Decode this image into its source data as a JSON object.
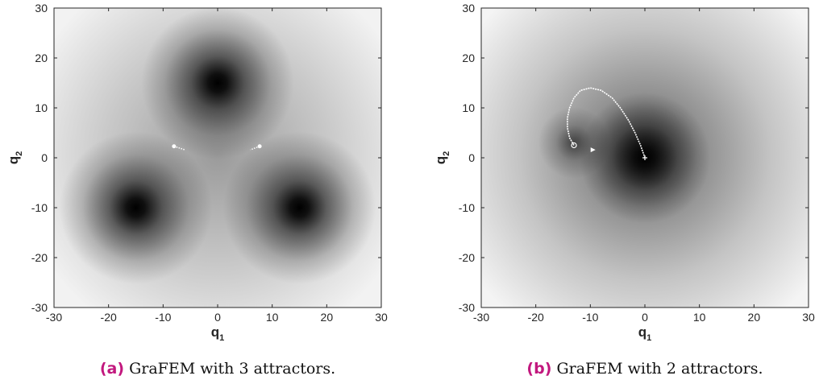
{
  "chart_data": [
    {
      "type": "heatmap",
      "panel_tag": "(a)",
      "caption": "GraFEM with 3 attractors.",
      "xlabel": "q",
      "xlabel_sub": "1",
      "ylabel": "q",
      "ylabel_sub": "2",
      "xlim": [
        -30,
        30
      ],
      "ylim": [
        -30,
        30
      ],
      "xticks": [
        -30,
        -20,
        -10,
        0,
        10,
        20,
        30
      ],
      "yticks": [
        -30,
        -20,
        -10,
        0,
        10,
        20,
        30
      ],
      "xtick_labels": [
        "-30",
        "-20",
        "-10",
        "0",
        "10",
        "20",
        "30"
      ],
      "ytick_labels": [
        "-30",
        "-20",
        "-10",
        "0",
        "10",
        "20",
        "30"
      ],
      "colormap": "grayscale (dark = attractor minimum)",
      "attractors": [
        [
          0,
          15
        ],
        [
          -15,
          -10
        ],
        [
          15,
          -10
        ]
      ],
      "trajectory_markers": [
        {
          "start": [
            -8,
            2.3
          ],
          "end": [
            -6,
            1.6
          ]
        },
        {
          "start": [
            7.7,
            2.3
          ],
          "end": [
            6,
            1.6
          ]
        }
      ]
    },
    {
      "type": "heatmap",
      "panel_tag": "(b)",
      "caption": "GraFEM with 2 attractors.",
      "xlabel": "q",
      "xlabel_sub": "1",
      "ylabel": "q",
      "ylabel_sub": "2",
      "xlim": [
        -30,
        30
      ],
      "ylim": [
        -30,
        30
      ],
      "xticks": [
        -30,
        -20,
        -10,
        0,
        10,
        20,
        30
      ],
      "yticks": [
        -30,
        -20,
        -10,
        0,
        10,
        20,
        30
      ],
      "xtick_labels": [
        "-30",
        "-20",
        "-10",
        "0",
        "10",
        "20",
        "30"
      ],
      "ytick_labels": [
        "-30",
        "-20",
        "-10",
        "0",
        "10",
        "20",
        "30"
      ],
      "colormap": "grayscale (dark = attractor minimum)",
      "attractors": [
        [
          -13,
          3
        ],
        [
          0,
          0
        ]
      ],
      "attractor_strength": [
        0.55,
        1.0
      ],
      "trajectory": [
        [
          -13,
          2.5
        ],
        [
          -13.8,
          4
        ],
        [
          -14.2,
          6
        ],
        [
          -14.2,
          8
        ],
        [
          -13.8,
          10
        ],
        [
          -13,
          12
        ],
        [
          -11.8,
          13.5
        ],
        [
          -10,
          14
        ],
        [
          -8,
          13.5
        ],
        [
          -6,
          12
        ],
        [
          -4.5,
          10
        ],
        [
          -3,
          7.5
        ],
        [
          -1.8,
          5
        ],
        [
          -0.8,
          2.5
        ],
        [
          0,
          0
        ]
      ],
      "trajectory_start": [
        -13,
        2.5
      ],
      "trajectory_end": [
        0,
        0
      ],
      "extra_marker": [
        -9.5,
        1.6
      ]
    }
  ]
}
